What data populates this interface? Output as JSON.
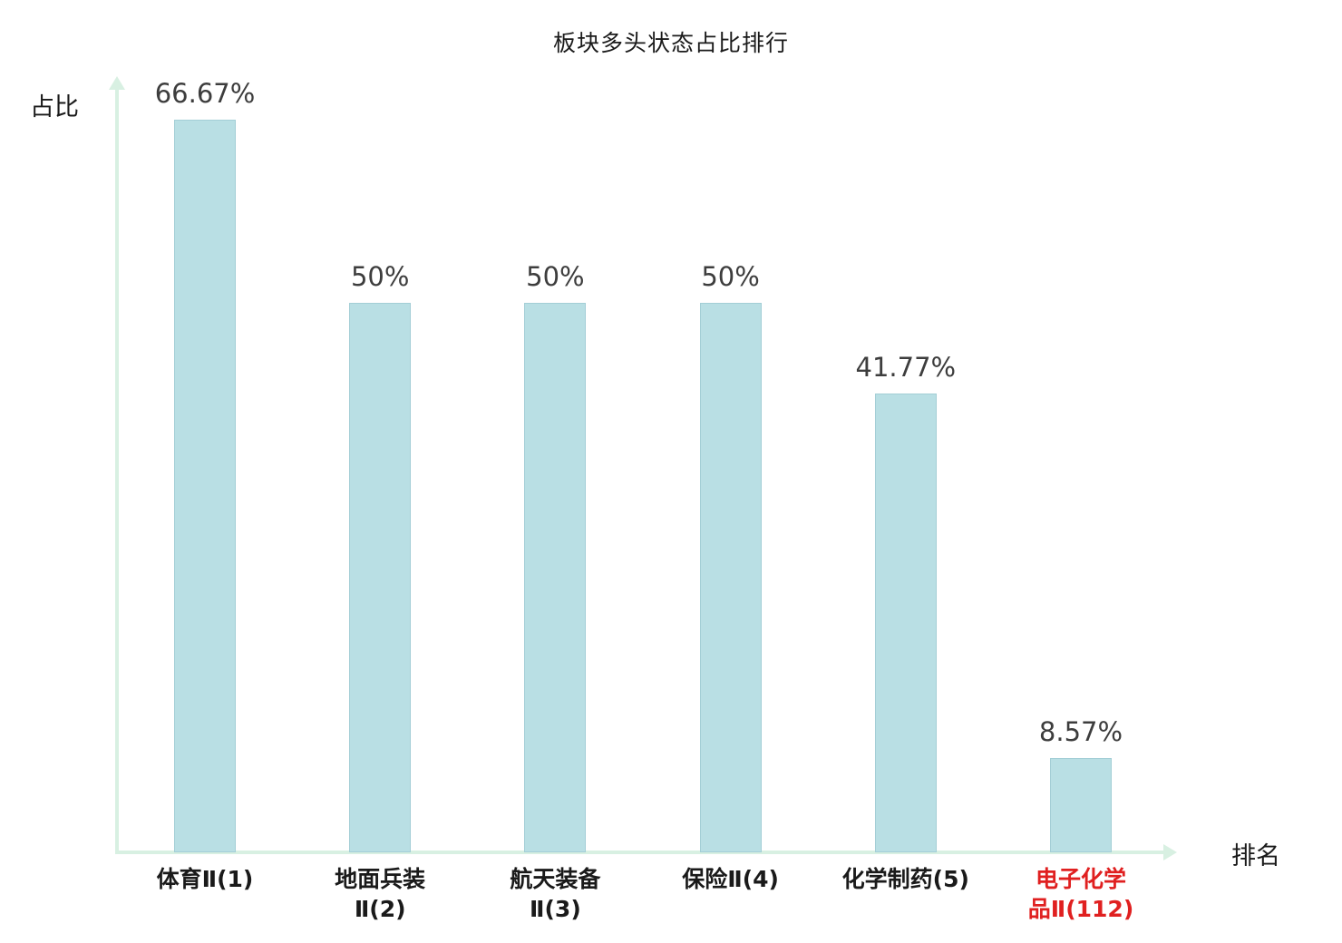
{
  "chart_data": {
    "type": "bar",
    "title": "板块多头状态占比排行",
    "xlabel": "排名",
    "ylabel": "占比",
    "categories": [
      "体育Ⅱ(1)",
      "地面兵装Ⅱ(2)",
      "航天装备Ⅱ(3)",
      "保险Ⅱ(4)",
      "化学制药(5)",
      "电子化学品Ⅱ(112)"
    ],
    "values": [
      66.67,
      50,
      50,
      50,
      41.77,
      8.57
    ],
    "value_labels": [
      "66.67%",
      "50%",
      "50%",
      "50%",
      "41.77%",
      "8.57%"
    ],
    "category_label_lines": [
      [
        "体育Ⅱ(1)"
      ],
      [
        "地面兵装",
        "Ⅱ(2)"
      ],
      [
        "航天装备",
        "Ⅱ(3)"
      ],
      [
        "保险Ⅱ(4)"
      ],
      [
        "化学制药(5)"
      ],
      [
        "电子化学",
        "品Ⅱ(112)"
      ]
    ],
    "highlight_index": 5,
    "ylim": [
      0,
      70
    ],
    "grid": false,
    "legend": false,
    "colors": {
      "bar_fill": "#b9dfe4",
      "bar_border": "#a3ced6",
      "axis": "#d8f0e2",
      "value_label_text": "#3d3d3d",
      "category_label_text": "#1a1a1a",
      "highlight_text": "#e02020"
    }
  }
}
